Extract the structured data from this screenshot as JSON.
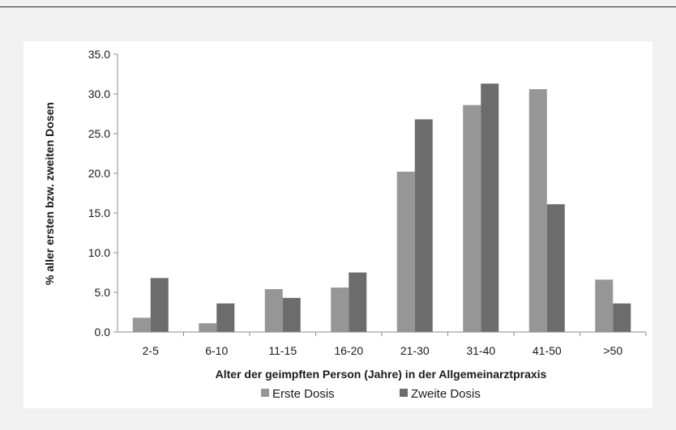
{
  "chart_data": {
    "type": "bar",
    "categories": [
      "2-5",
      "6-10",
      "11-15",
      "16-20",
      "21-30",
      "31-40",
      "41-50",
      ">50"
    ],
    "series": [
      {
        "name": "Erste Dosis",
        "values": [
          1.8,
          1.1,
          5.4,
          5.6,
          20.2,
          28.6,
          30.6,
          6.6
        ]
      },
      {
        "name": "Zweite Dosis",
        "values": [
          6.8,
          3.6,
          4.3,
          7.5,
          26.8,
          31.3,
          16.1,
          3.6
        ]
      }
    ],
    "colors": [
      "#969696",
      "#6c6c6c"
    ],
    "xlabel": "Alter der geimpften Person (Jahre) in der Allgemeinarztpraxis",
    "ylabel": "% aller ersten bzw. zweiten Dosen",
    "ylim": [
      0,
      35
    ],
    "yticks": [
      "0.0",
      "5.0",
      "10.0",
      "15.0",
      "20.0",
      "25.0",
      "30.0",
      "35.0"
    ],
    "grid": false,
    "legend_position": "bottom"
  }
}
